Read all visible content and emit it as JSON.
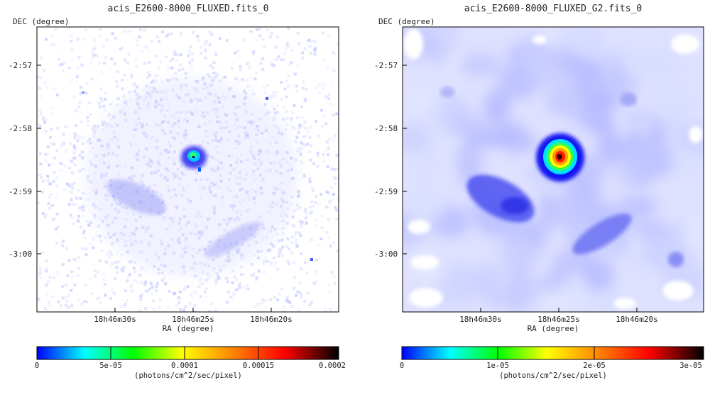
{
  "chart_data": [
    {
      "type": "heatmap",
      "title": "acis_E2600-8000_FLUXED.fits_0",
      "xlabel": "RA (degree)",
      "ylabel": "DEC (degree)",
      "x_ticks": [
        "18h46m30s",
        "18h46m25s",
        "18h46m20s"
      ],
      "y_ticks": [
        "-2:57",
        "-2:58",
        "-2:59",
        "-3:00"
      ],
      "colorbar": {
        "min": 0,
        "max": 0.0002,
        "ticks": [
          "0",
          "5e-05",
          "0.0001",
          "0.00015",
          "0.0002"
        ],
        "label": "(photons/cm^2/sec/pixel)"
      },
      "smoothed": false
    },
    {
      "type": "heatmap",
      "title": "acis_E2600-8000_FLUXED_G2.fits_0",
      "xlabel": "RA (degree)",
      "ylabel": "DEC (degree)",
      "x_ticks": [
        "18h46m30s",
        "18h46m25s",
        "18h46m20s"
      ],
      "y_ticks": [
        "-2:57",
        "-2:58",
        "-2:59",
        "-3:00"
      ],
      "colorbar": {
        "min": 0,
        "max": 3e-05,
        "ticks": [
          "0",
          "1e-05",
          "2e-05",
          "3e-05"
        ],
        "label": "(photons/cm^2/sec/pixel)"
      },
      "smoothed": true
    }
  ],
  "colors": {
    "colormap": [
      "#ffffff",
      "#0000ff",
      "#00ffff",
      "#00ff00",
      "#ffff00",
      "#ff8c00",
      "#ff0000",
      "#000000"
    ],
    "frame": "#000000"
  }
}
